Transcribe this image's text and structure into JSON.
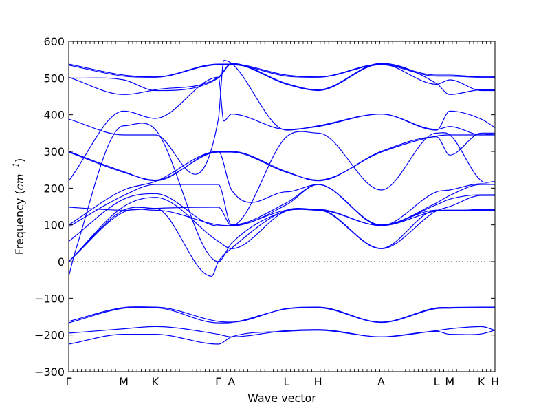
{
  "chart_data": {
    "type": "line",
    "title": "",
    "xlabel": "Wave vector",
    "ylabel": {
      "prefix": "Frequency (",
      "unit_main": "cm",
      "unit_sup": "−1",
      "suffix": ")"
    },
    "ylim": [
      -300,
      600
    ],
    "yticks": [
      -300,
      -200,
      -100,
      0,
      100,
      200,
      300,
      400,
      500,
      600
    ],
    "ytick_labels": [
      "−300",
      "−200",
      "−100",
      "0",
      "100",
      "200",
      "300",
      "400",
      "500",
      "600"
    ],
    "xlim": [
      0,
      1
    ],
    "xticks": [
      {
        "label": "Γ",
        "x": 0.0
      },
      {
        "label": "M",
        "x": 0.129
      },
      {
        "label": "K",
        "x": 0.203
      },
      {
        "label": "Γ",
        "x": 0.351
      },
      {
        "label": "A",
        "x": 0.382
      },
      {
        "label": "L",
        "x": 0.511
      },
      {
        "label": "H",
        "x": 0.585
      },
      {
        "label": "A",
        "x": 0.733
      },
      {
        "label": "L",
        "x": 0.863
      },
      {
        "label": "M",
        "x": 0.894
      },
      {
        "label": "K",
        "x": 0.968
      },
      {
        "label": "H",
        "x": 1.0
      }
    ],
    "zero_line": true,
    "line_color": "#0000ff",
    "series": [
      {
        "x": [
          0,
          0.129,
          0.203,
          0.351,
          0.382,
          0.511,
          0.585,
          0.733,
          0.863,
          0.894,
          0.968,
          1.0
        ],
        "values": [
          538,
          508,
          503,
          538,
          538,
          508,
          503,
          538,
          508,
          508,
          503,
          503
        ]
      },
      {
        "x": [
          0,
          0.129,
          0.203,
          0.351,
          0.382,
          0.511,
          0.585,
          0.733,
          0.863,
          0.894,
          0.968,
          1.0
        ],
        "values": [
          535,
          505,
          502,
          536,
          536,
          505,
          502,
          536,
          505,
          505,
          502,
          502
        ]
      },
      {
        "x": [
          0,
          0.129,
          0.203,
          0.351,
          0.382,
          0.511,
          0.585,
          0.733,
          0.863,
          0.894,
          0.968,
          1.0
        ],
        "values": [
          502,
          455,
          468,
          502,
          540,
          485,
          468,
          540,
          485,
          455,
          468,
          468
        ]
      },
      {
        "x": [
          0,
          0.129,
          0.203,
          0.351,
          0.382,
          0.511,
          0.585,
          0.733,
          0.863,
          0.894,
          0.968,
          1.0
        ],
        "values": [
          500,
          495,
          466,
          500,
          538,
          483,
          466,
          538,
          483,
          495,
          466,
          466
        ]
      },
      {
        "x": [
          0,
          0.129,
          0.203,
          0.351,
          0.364,
          0.382,
          0.511,
          0.585,
          0.733,
          0.863,
          0.894,
          0.968,
          1.0
        ],
        "values": [
          388,
          345,
          345,
          388,
          548,
          540,
          358,
          370,
          402,
          358,
          410,
          388,
          365
        ]
      },
      {
        "x": [
          0,
          0.129,
          0.203,
          0.351,
          0.364,
          0.382,
          0.511,
          0.585,
          0.733,
          0.863,
          0.894,
          0.968,
          1.0
        ],
        "values": [
          220,
          410,
          390,
          502,
          383,
          402,
          360,
          368,
          402,
          360,
          368,
          345,
          345
        ]
      },
      {
        "x": [
          0,
          0.129,
          0.203,
          0.351,
          0.382,
          0.511,
          0.585,
          0.733,
          0.863,
          0.894,
          0.968,
          1.0
        ],
        "values": [
          300,
          245,
          220,
          300,
          300,
          245,
          220,
          300,
          340,
          290,
          350,
          350
        ]
      },
      {
        "x": [
          0,
          0.129,
          0.203,
          0.351,
          0.382,
          0.511,
          0.585,
          0.733,
          0.863,
          0.894,
          0.968,
          1.0
        ],
        "values": [
          298,
          243,
          222,
          298,
          298,
          243,
          222,
          298,
          342,
          345,
          345,
          348
        ]
      },
      {
        "x": [
          0,
          0.129,
          0.203,
          0.351,
          0.382,
          0.511,
          0.585,
          0.733,
          0.863,
          0.894,
          0.968,
          1.0
        ],
        "values": [
          148,
          140,
          145,
          148,
          98,
          340,
          350,
          195,
          350,
          345,
          220,
          218
        ]
      },
      {
        "x": [
          0,
          0.129,
          0.203,
          0.351,
          0.382,
          0.511,
          0.585,
          0.733,
          0.863,
          0.894,
          0.968,
          1.0
        ],
        "values": [
          100,
          195,
          218,
          300,
          195,
          190,
          210,
          98,
          190,
          195,
          212,
          210
        ]
      },
      {
        "x": [
          0,
          0.129,
          0.203,
          0.351,
          0.382,
          0.511,
          0.585,
          0.733,
          0.863,
          0.894,
          0.968,
          1.0
        ],
        "values": [
          95,
          180,
          210,
          210,
          100,
          160,
          210,
          100,
          160,
          180,
          210,
          210
        ]
      },
      {
        "x": [
          0,
          0.129,
          0.203,
          0.351,
          0.382,
          0.511,
          0.585,
          0.733,
          0.863,
          0.894,
          0.968,
          1.0
        ],
        "values": [
          55,
          170,
          185,
          97,
          97,
          155,
          210,
          98,
          155,
          170,
          182,
          182
        ]
      },
      {
        "x": [
          0,
          0.129,
          0.203,
          0.351,
          0.382,
          0.511,
          0.585,
          0.733,
          0.863,
          0.894,
          0.968,
          1.0
        ],
        "values": [
          0,
          150,
          175,
          55,
          35,
          138,
          140,
          35,
          138,
          150,
          180,
          180
        ]
      },
      {
        "x": [
          0,
          0.129,
          0.203,
          0.351,
          0.382,
          0.511,
          0.585,
          0.733,
          0.863,
          0.894,
          0.968,
          1.0
        ],
        "values": [
          0,
          135,
          140,
          100,
          98,
          140,
          142,
          98,
          140,
          138,
          142,
          142
        ]
      },
      {
        "x": [
          0,
          0.016,
          0.129,
          0.203,
          0.351,
          0.382,
          0.511,
          0.585,
          0.733,
          0.863,
          0.894,
          0.968,
          1.0
        ],
        "values": [
          -40,
          30,
          370,
          360,
          0,
          50,
          138,
          140,
          98,
          138,
          140,
          140,
          140
        ]
      },
      {
        "x": [
          0,
          0.129,
          0.203,
          0.335,
          0.351,
          0.382,
          0.511,
          0.585,
          0.733,
          0.863,
          0.894,
          0.968,
          1.0
        ],
        "values": [
          0,
          140,
          145,
          -40,
          0,
          36,
          140,
          142,
          36,
          140,
          140,
          140,
          140
        ]
      },
      {
        "x": [
          0,
          0.129,
          0.203,
          0.351,
          0.382,
          0.511,
          0.585,
          0.733,
          0.863,
          0.894,
          0.968,
          1.0
        ],
        "values": [
          -163,
          -125,
          -124,
          -163,
          -165,
          -128,
          -124,
          -165,
          -126,
          -125,
          -124,
          -124
        ]
      },
      {
        "x": [
          0,
          0.129,
          0.203,
          0.351,
          0.382,
          0.511,
          0.585,
          0.733,
          0.863,
          0.894,
          0.968,
          1.0
        ],
        "values": [
          -167,
          -127,
          -126,
          -167,
          -166,
          -129,
          -126,
          -166,
          -128,
          -127,
          -126,
          -126
        ]
      },
      {
        "x": [
          0,
          0.129,
          0.203,
          0.351,
          0.382,
          0.511,
          0.585,
          0.733,
          0.863,
          0.894,
          0.968,
          1.0
        ],
        "values": [
          -195,
          -183,
          -177,
          -198,
          -205,
          -188,
          -185,
          -205,
          -188,
          -183,
          -177,
          -187
        ]
      },
      {
        "x": [
          0,
          0.129,
          0.203,
          0.351,
          0.382,
          0.511,
          0.585,
          0.733,
          0.863,
          0.894,
          0.968,
          1.0
        ],
        "values": [
          -225,
          -198,
          -198,
          -225,
          -205,
          -190,
          -187,
          -205,
          -190,
          -198,
          -197,
          -187
        ]
      }
    ]
  }
}
